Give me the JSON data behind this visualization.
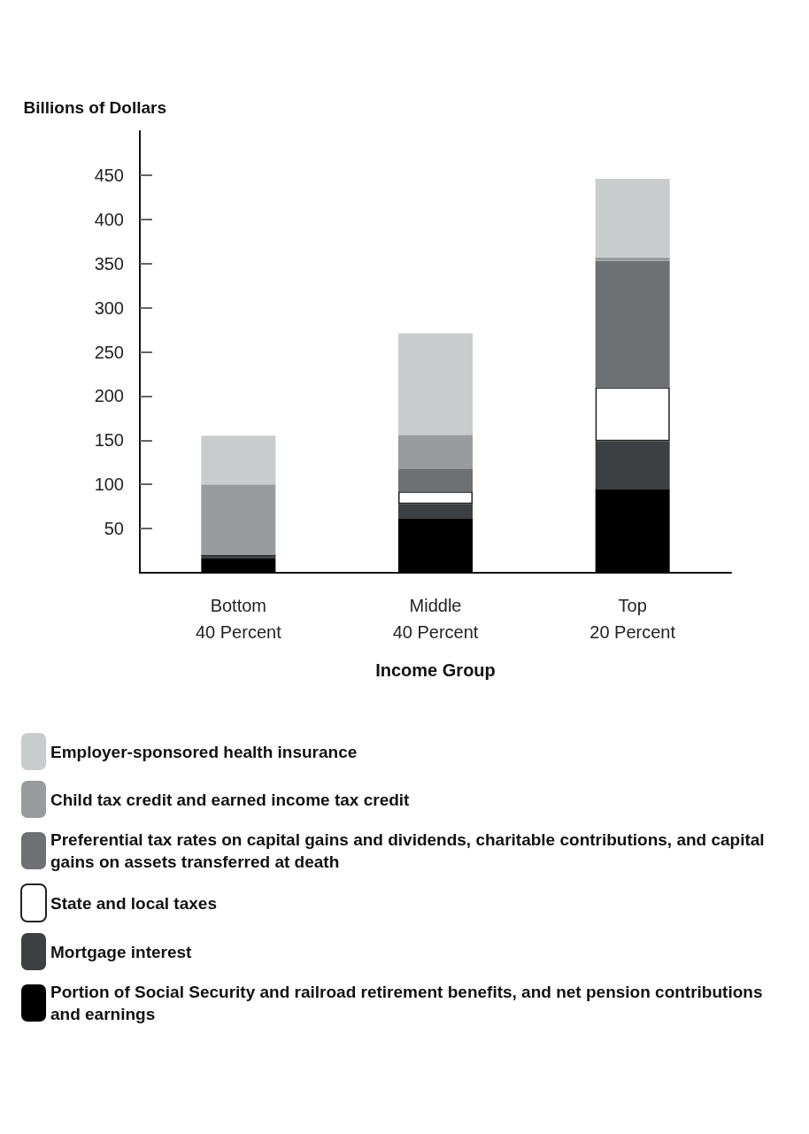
{
  "chart_data": {
    "type": "bar",
    "stacked": true,
    "ylabel": "Billions of Dollars",
    "xlabel": "Income Group",
    "categories": [
      "Bottom 40 Percent",
      "Middle 40 Percent",
      "Top 20 Percent"
    ],
    "series": [
      {
        "name": "Portion of Social Security and railroad retirement benefits, and net pension contributions and earnings",
        "color": "#000000",
        "values": [
          16,
          61,
          95
        ]
      },
      {
        "name": "Mortgage interest",
        "color": "#3d4042",
        "values": [
          4,
          17,
          54
        ]
      },
      {
        "name": "State and local taxes",
        "color": "#ffffff",
        "values": [
          0,
          14,
          61
        ]
      },
      {
        "name": "Preferential tax rates on capital gains and dividends, charitable contributions, and capital gains on assets transferred at death",
        "color": "#6d7173",
        "values": [
          0,
          26,
          143
        ]
      },
      {
        "name": "Child tax credit and earned income tax credit",
        "color": "#989c9e",
        "values": [
          80,
          38,
          4
        ]
      },
      {
        "name": "Employer-sponsored health insurance",
        "color": "#c8cccd",
        "values": [
          55,
          115,
          89
        ]
      }
    ],
    "ylim": [
      0,
      500
    ],
    "yticks": [
      50,
      100,
      150,
      200,
      250,
      300,
      350,
      400,
      450
    ],
    "grid": false,
    "legend": "bottom"
  }
}
